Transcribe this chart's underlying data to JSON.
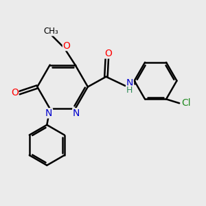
{
  "bg_color": "#ebebeb",
  "bond_color": "#000000",
  "bond_width": 1.8,
  "atom_colors": {
    "O": "#ff0000",
    "N": "#0000cd",
    "Cl": "#228b22",
    "NH": "#2e8b57",
    "C": "#000000"
  },
  "font_size": 10,
  "font_size_small": 8.5
}
